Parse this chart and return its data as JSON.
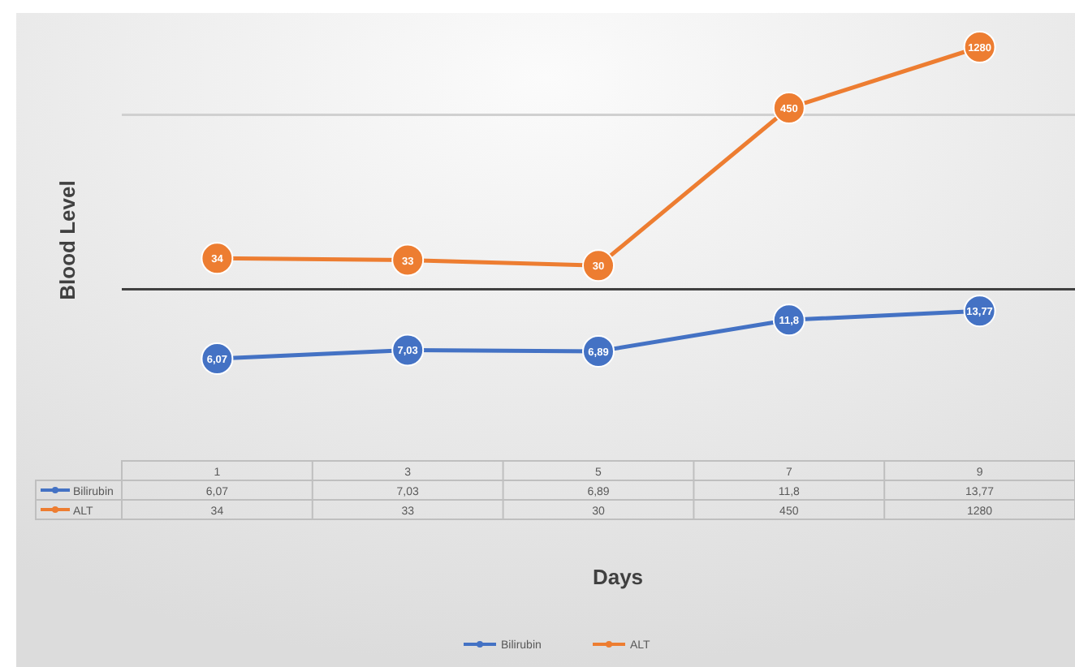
{
  "chart_data": {
    "type": "line",
    "xlabel": "Days",
    "ylabel": "Blood Level",
    "categories": [
      "1",
      "3",
      "5",
      "7",
      "9"
    ],
    "series": [
      {
        "name": "Bilirubin",
        "color": "#4472c4",
        "values": [
          6.07,
          7.03,
          6.89,
          11.8,
          13.77
        ],
        "value_labels": [
          "6,07",
          "7,03",
          "6,89",
          "11,8",
          "13,77"
        ]
      },
      {
        "name": "ALT",
        "color": "#ed7d31",
        "values": [
          34,
          33,
          30,
          450,
          1280
        ],
        "value_labels": [
          "34",
          "33",
          "30",
          "450",
          "1280"
        ]
      }
    ],
    "log": true,
    "ref_lines": [
      {
        "axis": "y",
        "value": 20,
        "color": "#404040"
      },
      {
        "axis": "y",
        "value": 400,
        "color": "#d0d0d0"
      }
    ],
    "legend": "bottom",
    "marker": "circle",
    "line_style": "solid"
  }
}
